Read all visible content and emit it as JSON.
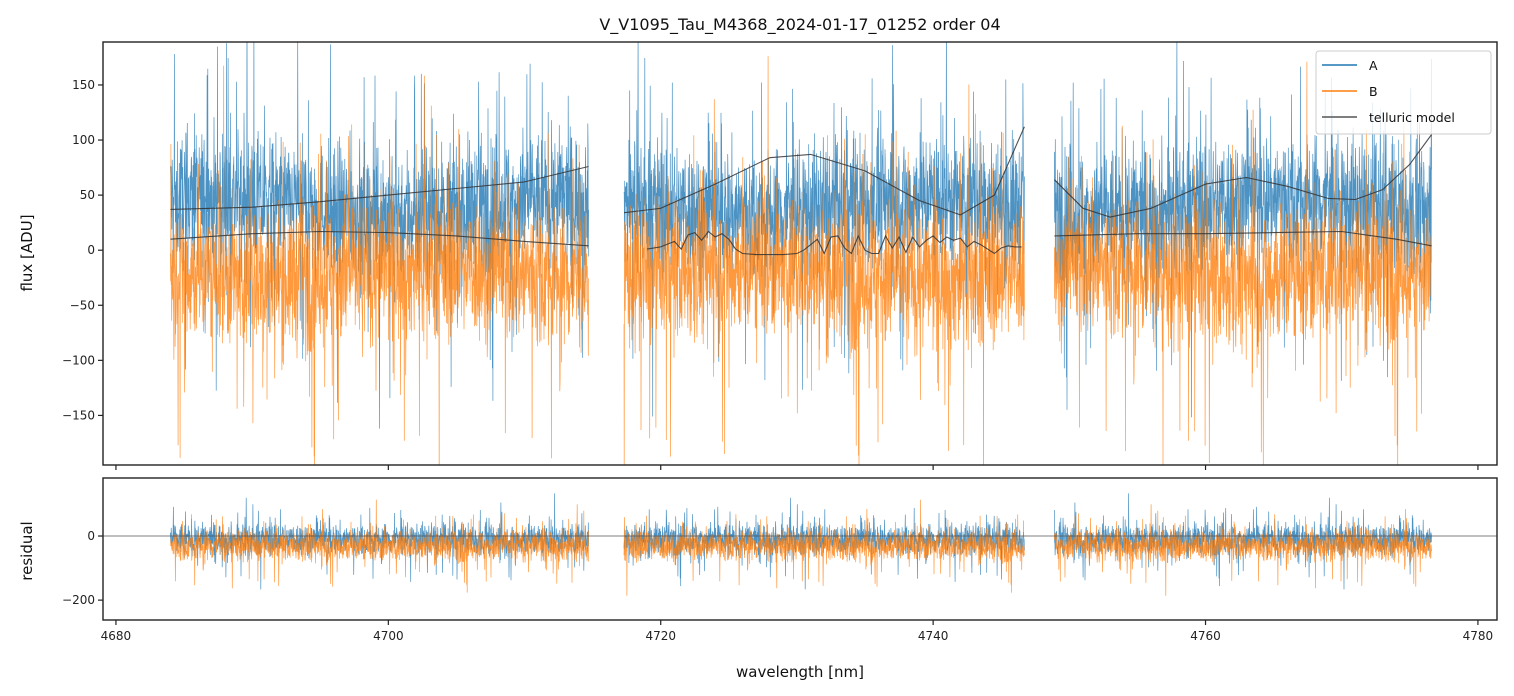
{
  "chart_data": [
    {
      "panel": "top",
      "type": "line",
      "title": "V_V1095_Tau_M4368_2024-01-17_01252  order 04",
      "xlabel": "",
      "ylabel": "flux [ADU]",
      "xlim": [
        4679.05,
        4781.4
      ],
      "ylim": [
        -195,
        189
      ],
      "yticks": [
        -150,
        -100,
        -50,
        0,
        50,
        100,
        150
      ],
      "ytick_labels": [
        "−150",
        "−100",
        "−50",
        "0",
        "50",
        "100",
        "150"
      ],
      "xticks": [
        4680,
        4700,
        4720,
        4740,
        4760,
        4780
      ],
      "legend": {
        "position": "top-right",
        "entries": [
          "A",
          "B",
          "telluric model"
        ]
      },
      "segments": [
        [
          4684.0,
          4714.7
        ],
        [
          4717.3,
          4746.7
        ],
        [
          4748.9,
          4776.6
        ]
      ],
      "series": [
        {
          "name": "A",
          "color": "#1f77b4",
          "alpha": 0.8,
          "description_level": "noisy, mean ~40",
          "noise_amplitude": 55
        },
        {
          "name": "B",
          "color": "#ff7f0e",
          "alpha": 0.8,
          "description_level": "noisy, mean ~-20",
          "noise_amplitude": 60
        },
        {
          "name": "telluric model",
          "color": "#333333",
          "upper_curve": {
            "x": [
              4684,
              4690,
              4695,
              4700,
              4705,
              4710,
              4714.7,
              4717.3,
              4720,
              4724,
              4728,
              4731,
              4735,
              4739,
              4742,
              4744.5,
              4746.7,
              4748.9,
              4751,
              4753,
              4756,
              4760,
              4763,
              4766,
              4769,
              4771,
              4773,
              4775,
              4776.6
            ],
            "y": [
              37,
              39,
              44,
              50,
              56,
              62,
              76,
              34,
              38,
              60,
              84,
              87,
              72,
              45,
              32,
              50,
              112,
              64,
              38,
              30,
              38,
              60,
              66,
              58,
              47,
              46,
              55,
              78,
              105
            ]
          },
          "lower_curve": {
            "x": [
              4684,
              4690,
              4695,
              4700,
              4705,
              4710,
              4714.7,
              4748.9,
              4755,
              4760,
              4765,
              4770,
              4774,
              4776.6
            ],
            "y": [
              10,
              15,
              17,
              16,
              13,
              8,
              4,
              13,
              15,
              15,
              16,
              17,
              10,
              4
            ]
          },
          "absorption_band": {
            "x": [
              4719.0,
              4720.0,
              4721.0,
              4721.5,
              4722.0,
              4722.5,
              4723.0,
              4723.5,
              4724.0,
              4724.5,
              4725.0,
              4725.5,
              4726.0,
              4727.0,
              4728.0,
              4729.0,
              4730.0,
              4730.5,
              4731.5,
              4732.0,
              4732.5,
              4733.0,
              4733.5,
              4734.0,
              4734.5,
              4735.0,
              4735.5,
              4736.0,
              4736.5,
              4737.0,
              4737.5,
              4738.0,
              4738.5,
              4739.0,
              4739.5,
              4740.0,
              4740.5,
              4741.0,
              4741.5,
              4742.0,
              4742.5,
              4743.0,
              4743.5,
              4744.0,
              4744.5,
              4745.0,
              4745.5,
              4746.0,
              4746.5
            ],
            "y": [
              1,
              3,
              8,
              1,
              14,
              16,
              9,
              17,
              12,
              15,
              10,
              1,
              -3,
              -4,
              -4,
              -4,
              -3,
              0,
              10,
              -3,
              12,
              13,
              2,
              -3,
              13,
              0,
              -3,
              -3,
              13,
              2,
              12,
              -2,
              12,
              3,
              9,
              13,
              7,
              12,
              9,
              11,
              3,
              8,
              5,
              1,
              -3,
              2,
              4,
              3,
              3
            ]
          }
        }
      ]
    },
    {
      "panel": "bottom",
      "type": "line",
      "xlabel": "wavelength [nm]",
      "ylabel": "residual",
      "xlim": [
        4679.05,
        4781.4
      ],
      "ylim": [
        -262,
        181
      ],
      "yticks": [
        -200,
        0
      ],
      "ytick_labels": [
        "−200",
        "0"
      ],
      "xticks": [
        4680,
        4700,
        4720,
        4740,
        4760,
        4780
      ],
      "xtick_labels": [
        "4680",
        "4700",
        "4720",
        "4740",
        "4760",
        "4780"
      ],
      "reference_line": 0,
      "segments": [
        [
          4684.0,
          4714.7
        ],
        [
          4717.3,
          4746.7
        ],
        [
          4748.9,
          4776.6
        ]
      ],
      "series": [
        {
          "name": "A",
          "color": "#1f77b4",
          "mean": -10,
          "noise_amplitude": 45
        },
        {
          "name": "B",
          "color": "#ff7f0e",
          "mean": -30,
          "noise_amplitude": 45
        }
      ]
    }
  ]
}
